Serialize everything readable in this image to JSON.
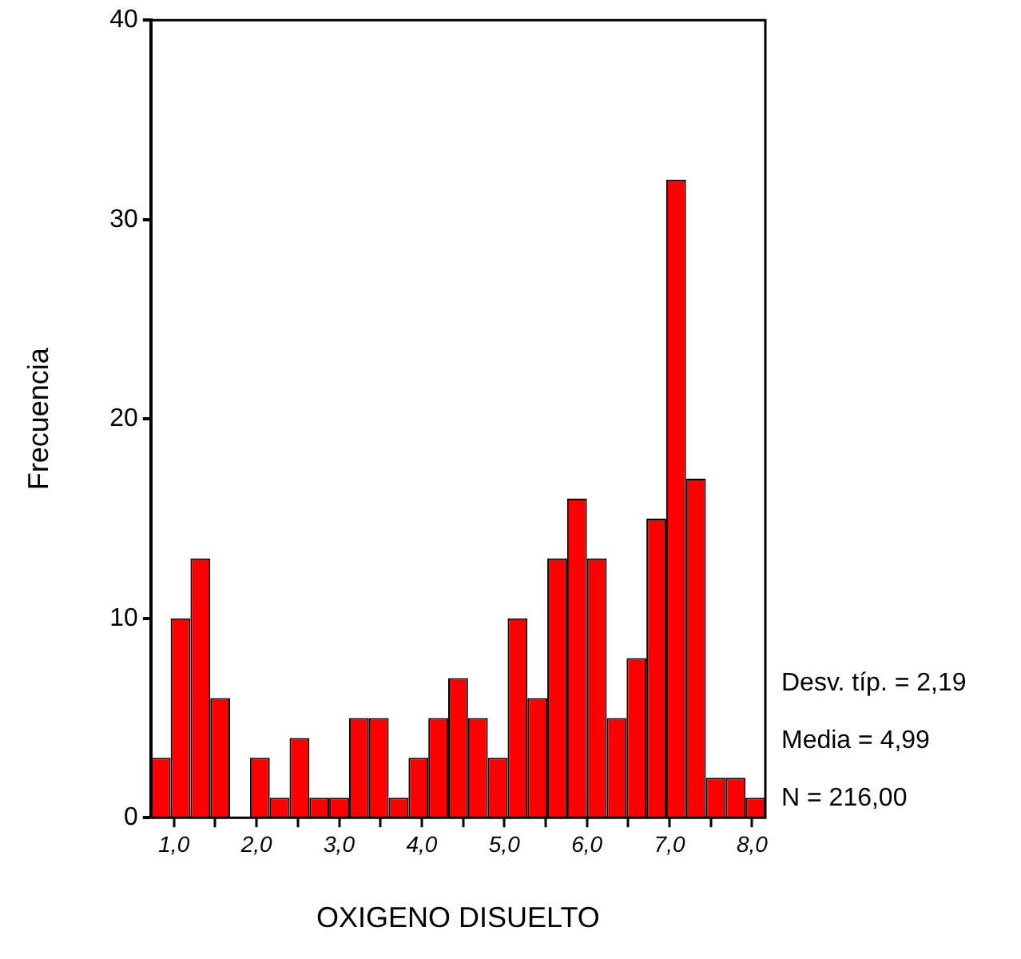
{
  "chart_data": {
    "type": "histogram",
    "xlabel": "OXIGENO DISUELTO",
    "ylabel": "Frecuencia",
    "bins": [
      0.72,
      0.96,
      1.2,
      1.44,
      1.68,
      1.92,
      2.16,
      2.4,
      2.64,
      2.88,
      3.12,
      3.36,
      3.6,
      3.84,
      4.08,
      4.32,
      4.56,
      4.8,
      5.04,
      5.28,
      5.52,
      5.76,
      6.0,
      6.24,
      6.48,
      6.72,
      6.96,
      7.2,
      7.44,
      7.68,
      7.92,
      8.16
    ],
    "values": [
      3,
      10,
      13,
      6,
      0,
      3,
      1,
      4,
      1,
      1,
      5,
      5,
      1,
      3,
      5,
      7,
      5,
      3,
      10,
      6,
      13,
      16,
      13,
      5,
      8,
      15,
      32,
      17,
      2,
      2,
      1
    ],
    "color": "#ff0000",
    "xlim": [
      0.72,
      8.16
    ],
    "xticks": [
      {
        "value": 1,
        "label": "1,0"
      },
      {
        "value": 1.5,
        "label": null
      },
      {
        "value": 2,
        "label": "2,0"
      },
      {
        "value": 2.5,
        "label": null
      },
      {
        "value": 3,
        "label": "3,0"
      },
      {
        "value": 3.5,
        "label": null
      },
      {
        "value": 4,
        "label": "4,0"
      },
      {
        "value": 4.5,
        "label": null
      },
      {
        "value": 5,
        "label": "5,0"
      },
      {
        "value": 5.5,
        "label": null
      },
      {
        "value": 6,
        "label": "6,0"
      },
      {
        "value": 6.5,
        "label": null
      },
      {
        "value": 7,
        "label": "7,0"
      },
      {
        "value": 7.5,
        "label": null
      },
      {
        "value": 8,
        "label": "8,0"
      }
    ],
    "ylim": [
      0,
      40
    ],
    "yticks": [
      0,
      10,
      20,
      30,
      40
    ],
    "grid": false,
    "legend": false,
    "annotations": [
      "Desv. típ. = 2,19",
      "Media = 4,99",
      "N = 216,00"
    ]
  }
}
